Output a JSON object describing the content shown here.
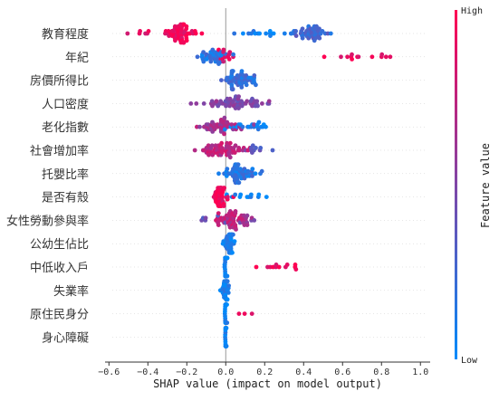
{
  "chart_data": {
    "type": "scatter",
    "subtype": "shap-beeswarm",
    "xlabel": "SHAP value (impact on model output)",
    "xlim": [
      -0.62,
      1.05
    ],
    "xticks": [
      -0.6,
      -0.4,
      -0.2,
      0.0,
      0.2,
      0.4,
      0.6,
      0.8,
      1.0
    ],
    "xtick_labels": [
      "−0.6",
      "−0.4",
      "−0.2",
      "0.0",
      "0.2",
      "0.4",
      "0.6",
      "0.8",
      "1.0"
    ],
    "features": [
      "教育程度",
      "年紀",
      "房價所得比",
      "人口密度",
      "老化指數",
      "社會增加率",
      "托嬰比率",
      "是否有殼",
      "女性勞動參與率",
      "公幼生佔比",
      "中低收入戶",
      "失業率",
      "原住民身分",
      "身心障礙"
    ],
    "colorbar": {
      "label": "Feature value",
      "high_label": "High",
      "low_label": "Low",
      "low_color": "#008bfb",
      "high_color": "#ff0052"
    },
    "grid": false,
    "legend": "colorbar-right",
    "feature_distributions": [
      {
        "feature": "教育程度",
        "clusters": [
          {
            "center": -0.23,
            "spread": 0.045,
            "n": 55,
            "value": 0.95
          },
          {
            "center": -0.45,
            "spread": 0.09,
            "n": 9,
            "value": 0.9
          },
          {
            "center": 0.43,
            "spread": 0.045,
            "n": 45,
            "value": 0.25
          },
          {
            "center": 0.18,
            "spread": 0.09,
            "n": 14,
            "value": 0.05
          }
        ]
      },
      {
        "feature": "年紀",
        "clusters": [
          {
            "center": -0.06,
            "spread": 0.03,
            "n": 35,
            "value": 0.15
          },
          {
            "center": -0.01,
            "spread": 0.02,
            "n": 12,
            "value": 0.9
          },
          {
            "center": 0.76,
            "spread": 0.12,
            "n": 14,
            "value": 0.95
          }
        ]
      },
      {
        "feature": "房價所得比",
        "clusters": [
          {
            "center": 0.07,
            "spread": 0.045,
            "n": 55,
            "value": 0.2
          }
        ]
      },
      {
        "feature": "人口密度",
        "clusters": [
          {
            "center": 0.02,
            "spread": 0.09,
            "n": 55,
            "value": 0.5
          }
        ]
      },
      {
        "feature": "老化指數",
        "clusters": [
          {
            "center": -0.02,
            "spread": 0.06,
            "n": 45,
            "value": 0.65
          },
          {
            "center": 0.12,
            "spread": 0.06,
            "n": 20,
            "value": 0.05
          }
        ]
      },
      {
        "feature": "社會增加率",
        "clusters": [
          {
            "center": -0.01,
            "spread": 0.07,
            "n": 60,
            "value": 0.75
          },
          {
            "center": 0.14,
            "spread": 0.04,
            "n": 10,
            "value": 0.35
          }
        ]
      },
      {
        "feature": "托嬰比率",
        "clusters": [
          {
            "center": 0.07,
            "spread": 0.045,
            "n": 55,
            "value": 0.15
          }
        ]
      },
      {
        "feature": "是否有殼",
        "clusters": [
          {
            "center": -0.03,
            "spread": 0.02,
            "n": 45,
            "value": 0.95
          },
          {
            "center": 0.09,
            "spread": 0.05,
            "n": 12,
            "value": 0.05
          }
        ]
      },
      {
        "feature": "女性勞動參與率",
        "clusters": [
          {
            "center": 0.02,
            "spread": 0.04,
            "n": 45,
            "value": 0.75
          },
          {
            "center": -0.08,
            "spread": 0.03,
            "n": 6,
            "value": 0.4
          },
          {
            "center": 0.11,
            "spread": 0.04,
            "n": 10,
            "value": 0.55
          }
        ]
      },
      {
        "feature": "公幼生佔比",
        "clusters": [
          {
            "center": 0.02,
            "spread": 0.015,
            "n": 45,
            "value": 0.08
          }
        ]
      },
      {
        "feature": "中低收入戶",
        "clusters": [
          {
            "center": 0.0,
            "spread": 0.004,
            "n": 40,
            "value": 0.05
          },
          {
            "center": 0.28,
            "spread": 0.08,
            "n": 12,
            "value": 0.95
          }
        ]
      },
      {
        "feature": "失業率",
        "clusters": [
          {
            "center": 0.0,
            "spread": 0.008,
            "n": 35,
            "value": 0.08
          }
        ]
      },
      {
        "feature": "原住民身分",
        "clusters": [
          {
            "center": 0.0,
            "spread": 0.003,
            "n": 35,
            "value": 0.05
          },
          {
            "center": 0.1,
            "spread": 0.03,
            "n": 3,
            "value": 0.95
          }
        ]
      },
      {
        "feature": "身心障礙",
        "clusters": [
          {
            "center": 0.0,
            "spread": 0.002,
            "n": 35,
            "value": 0.05
          }
        ]
      }
    ]
  }
}
